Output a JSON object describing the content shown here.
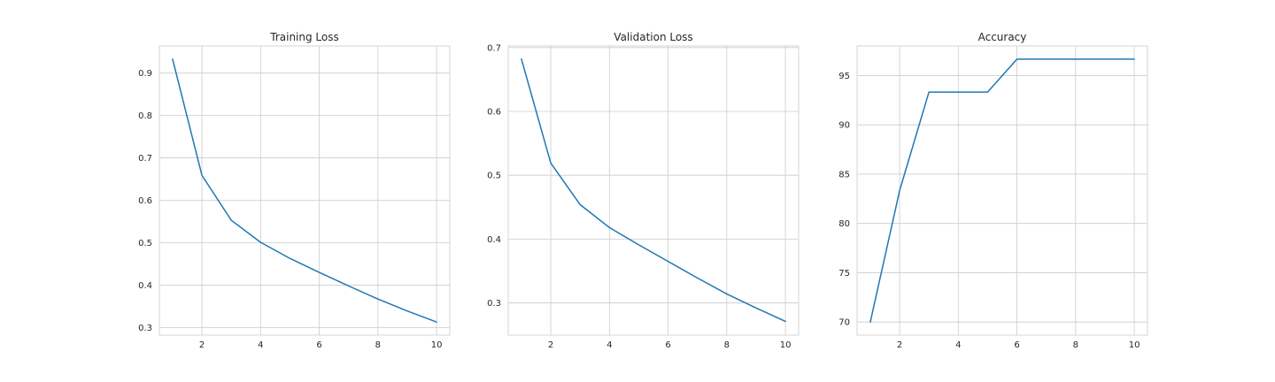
{
  "chart_data": [
    {
      "type": "line",
      "title": "Training Loss",
      "xlabel": "",
      "ylabel": "",
      "x": [
        1,
        2,
        3,
        4,
        5,
        6,
        7,
        8,
        9,
        10
      ],
      "series": [
        {
          "values": [
            0.933,
            0.659,
            0.553,
            0.501,
            0.463,
            0.43,
            0.398,
            0.367,
            0.339,
            0.313
          ]
        }
      ],
      "xlim": [
        0.55,
        10.45
      ],
      "ylim": [
        0.282,
        0.964
      ],
      "xticks": [
        2,
        4,
        6,
        8,
        10
      ],
      "yticks": [
        0.3,
        0.4,
        0.5,
        0.6,
        0.7,
        0.8,
        0.9
      ],
      "ytick_labels": [
        "0.3",
        "0.4",
        "0.5",
        "0.6",
        "0.7",
        "0.8",
        "0.9"
      ],
      "grid": true,
      "color": "#1f77b4"
    },
    {
      "type": "line",
      "title": "Validation Loss",
      "xlabel": "",
      "ylabel": "",
      "x": [
        1,
        2,
        3,
        4,
        5,
        6,
        7,
        8,
        9,
        10
      ],
      "series": [
        {
          "values": [
            0.682,
            0.519,
            0.454,
            0.418,
            0.391,
            0.365,
            0.339,
            0.314,
            0.292,
            0.271
          ]
        }
      ],
      "xlim": [
        0.55,
        10.45
      ],
      "ylim": [
        0.2495,
        0.7025
      ],
      "xticks": [
        2,
        4,
        6,
        8,
        10
      ],
      "yticks": [
        0.3,
        0.4,
        0.5,
        0.6,
        0.7
      ],
      "ytick_labels": [
        "0.3",
        "0.4",
        "0.5",
        "0.6",
        "0.7"
      ],
      "grid": true,
      "color": "#1f77b4"
    },
    {
      "type": "line",
      "title": "Accuracy",
      "xlabel": "",
      "ylabel": "",
      "x": [
        1,
        2,
        3,
        4,
        5,
        6,
        7,
        8,
        9,
        10
      ],
      "series": [
        {
          "values": [
            70.0,
            83.33,
            93.33,
            93.33,
            93.33,
            96.67,
            96.67,
            96.67,
            96.67,
            96.67
          ]
        }
      ],
      "xlim": [
        0.55,
        10.45
      ],
      "ylim": [
        68.67,
        98.0
      ],
      "xticks": [
        2,
        4,
        6,
        8,
        10
      ],
      "yticks": [
        70,
        75,
        80,
        85,
        90,
        95
      ],
      "ytick_labels": [
        "70",
        "75",
        "80",
        "85",
        "90",
        "95"
      ],
      "grid": true,
      "color": "#1f77b4"
    }
  ]
}
